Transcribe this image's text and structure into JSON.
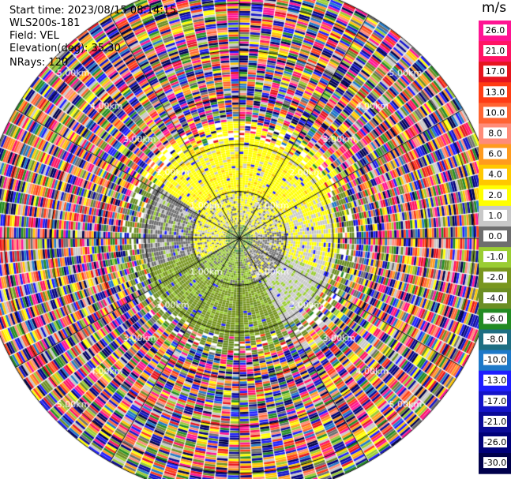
{
  "info": {
    "start_time": "Start time: 2023/08/15 08:14:15",
    "instrument": "WLS200s-181",
    "field": "Field: VEL",
    "elevation": "Elevation(deg): 35.30",
    "nrays": "NRays: 120"
  },
  "colorbar": {
    "unit": "m/s",
    "ticks": [
      "26.0",
      "21.0",
      "17.0",
      "13.0",
      "10.0",
      "8.0",
      "6.0",
      "4.0",
      "2.0",
      "1.0",
      "0.0",
      "-1.0",
      "-2.0",
      "-4.0",
      "-6.0",
      "-8.0",
      "-10.0",
      "-13.0",
      "-17.0",
      "-21.0",
      "-26.0",
      "-30.0"
    ],
    "colors": [
      "#ff1493",
      "#ff1464",
      "#e6141e",
      "#ff3c14",
      "#ff6432",
      "#ff8c78",
      "#ff9b1e",
      "#ffc800",
      "#ffff00",
      "#c8c8c8",
      "#6e6e6e",
      "#9acd32",
      "#78961e",
      "#6b8e23",
      "#228b22",
      "#1e6e82",
      "#1e78c8",
      "#1e1eff",
      "#1414c8",
      "#0a0a96",
      "#000078",
      "#00004b"
    ]
  },
  "chart_data": {
    "type": "heatmap",
    "projection": "polar-ppi",
    "field": "VEL",
    "nrays": 120,
    "range_rings_km": [
      1.0,
      2.0,
      3.0,
      4.0,
      5.0
    ],
    "ring_labels": [
      "1.00km",
      "2.00km",
      "3.00km",
      "4.00km",
      "5.00km"
    ],
    "max_range_km": 5.5,
    "radial_lines": 12,
    "description_regions": [
      {
        "range_km": [
          0,
          1.0
        ],
        "dominant_values_ms": [
          0.0,
          1.0,
          -2.0
        ]
      },
      {
        "range_km": [
          1.0,
          2.0
        ],
        "dominant_values_ms": [
          2.0,
          0.0,
          -4.0
        ]
      },
      {
        "range_km": [
          2.0,
          5.5
        ],
        "dominant_values_ms": "noise"
      }
    ]
  }
}
